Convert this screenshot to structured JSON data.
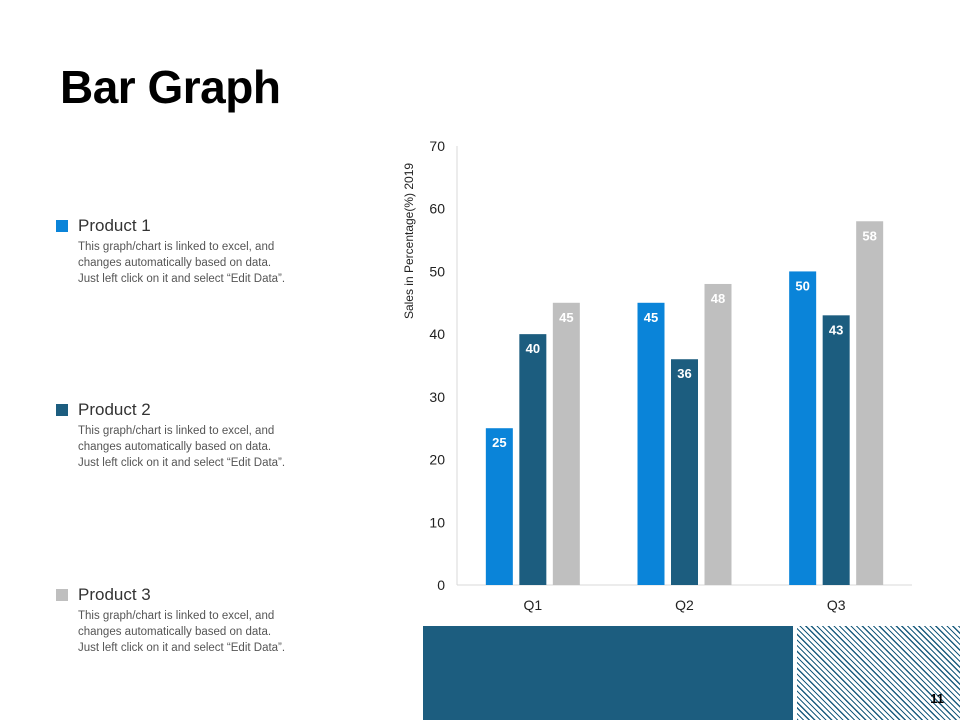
{
  "slide": {
    "title": "Bar Graph",
    "page_number": "11"
  },
  "legend": [
    {
      "name": "Product 1",
      "color": "#0a84d9",
      "description": "This graph/chart is linked to excel, and\nchanges automatically based on data.\nJust left click on it and select “Edit Data”."
    },
    {
      "name": "Product 2",
      "color": "#1c5d7f",
      "description": "This graph/chart is linked to excel, and\nchanges automatically based on data.\nJust left click on it and select “Edit Data”."
    },
    {
      "name": "Product 3",
      "color": "#bfbfbf",
      "description": "This graph/chart is linked to excel, and\nchanges automatically based on data.\nJust left click on it and select “Edit Data”."
    }
  ],
  "chart_data": {
    "type": "bar",
    "title": "",
    "xlabel": "",
    "ylabel": "Sales in Percentage(%) 2019",
    "categories": [
      "Q1",
      "Q2",
      "Q3"
    ],
    "ylim": [
      0,
      70
    ],
    "yticks": [
      0,
      10,
      20,
      30,
      40,
      50,
      60,
      70
    ],
    "grid": false,
    "series": [
      {
        "name": "Product 1",
        "color": "#0a84d9",
        "values": [
          25,
          45,
          50
        ]
      },
      {
        "name": "Product 2",
        "color": "#1c5d7f",
        "values": [
          40,
          36,
          43
        ]
      },
      {
        "name": "Product 3",
        "color": "#bfbfbf",
        "values": [
          45,
          48,
          58
        ]
      }
    ]
  }
}
